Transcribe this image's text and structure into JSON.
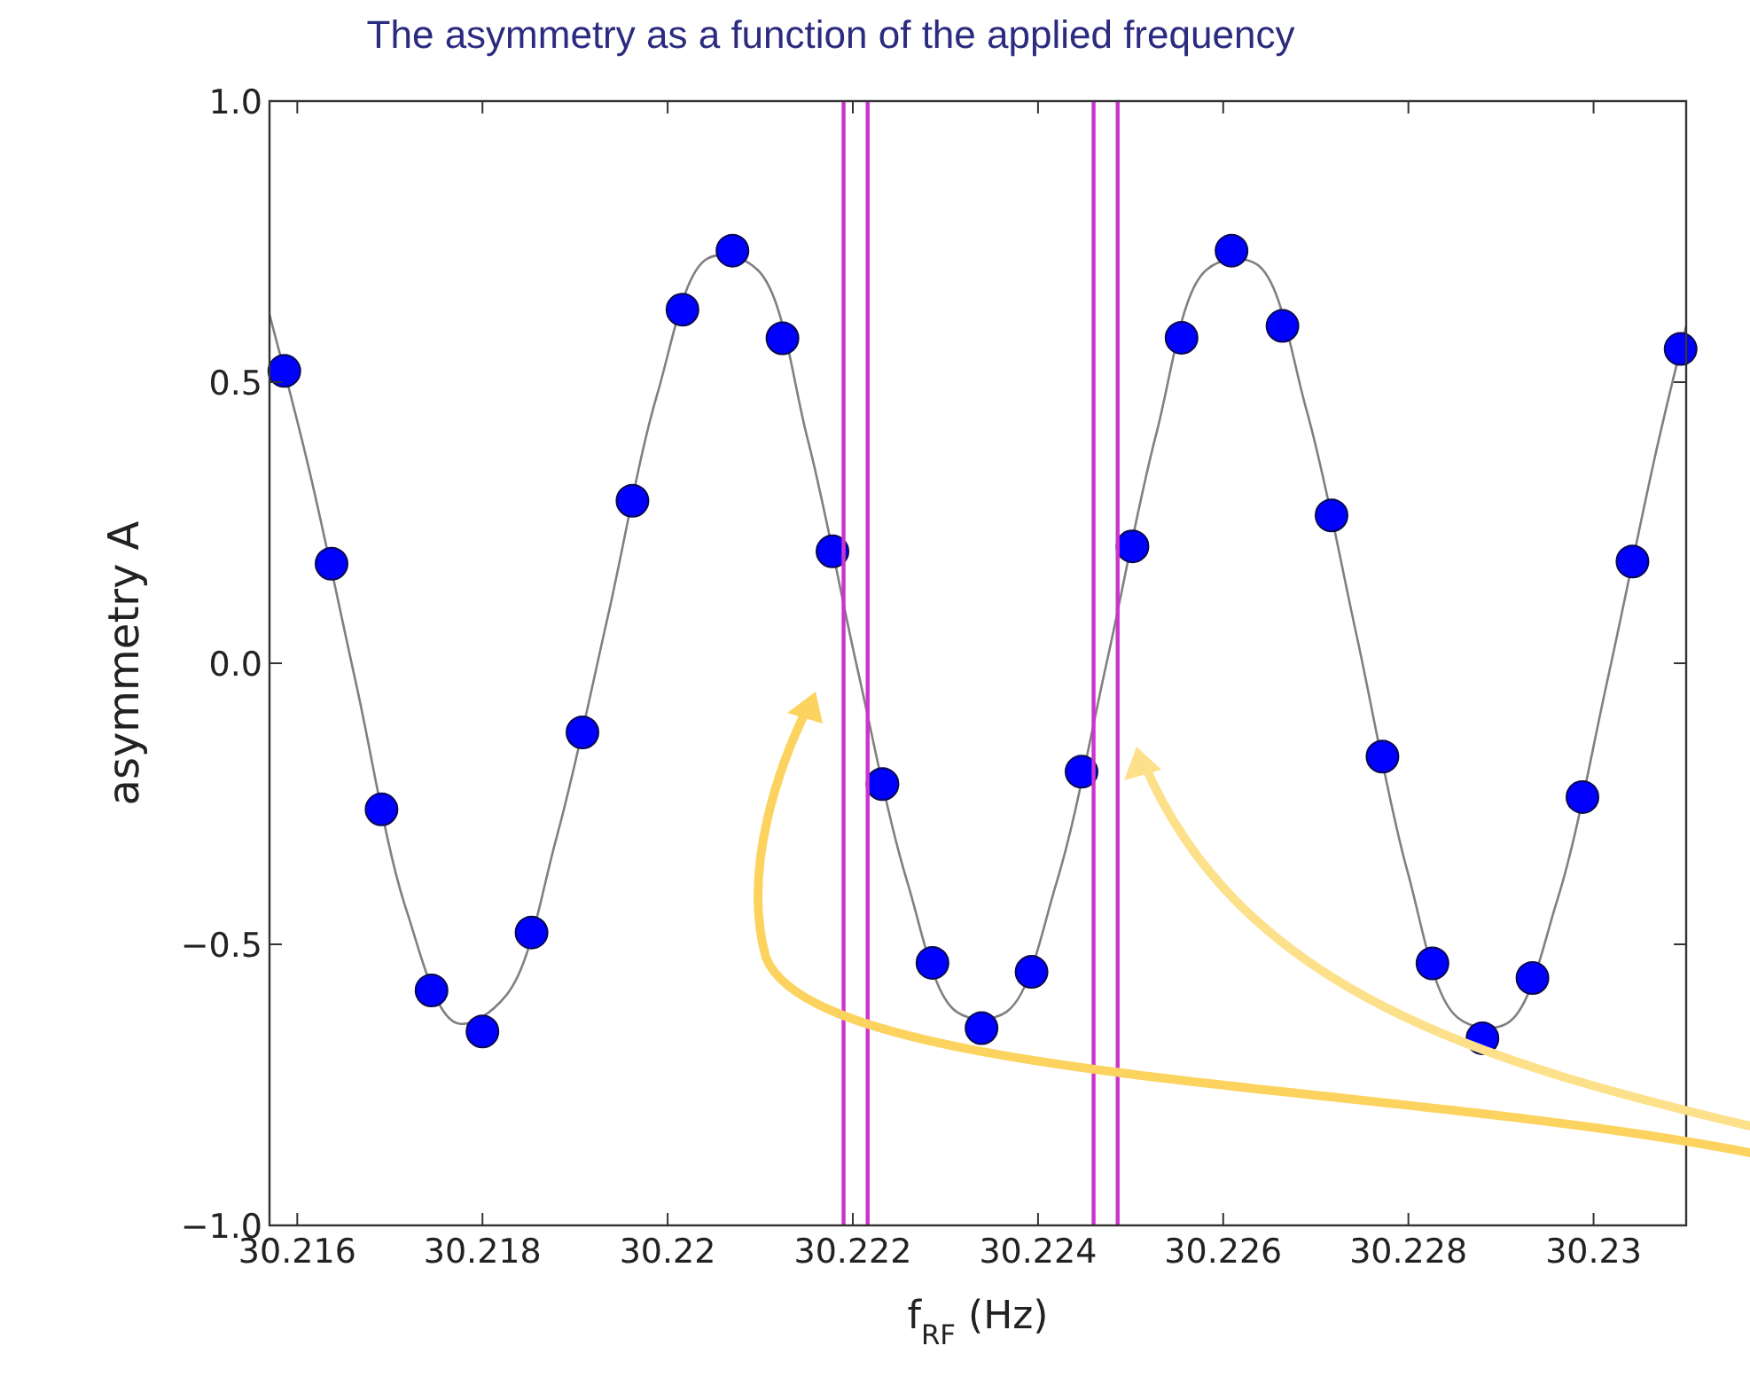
{
  "chart_data": {
    "type": "scatter",
    "title": "The asymmetry as a function of the applied frequency",
    "xlabel": "f$_{RF}$ (Hz)",
    "ylabel": "asymmetry A",
    "xlim": [
      30.2157,
      30.231
    ],
    "ylim": [
      -1,
      1
    ],
    "xticks": [
      30.216,
      30.218,
      30.22,
      30.222,
      30.224,
      30.226,
      30.228,
      30.23
    ],
    "yticks": [
      {
        "value": -1,
        "label": "−1.0"
      },
      {
        "value": -0.5,
        "label": "−0.5"
      },
      {
        "value": 0,
        "label": "0.0"
      },
      {
        "value": 0.5,
        "label": "0.5"
      },
      {
        "value": 1,
        "label": "1.0"
      }
    ],
    "grid": false,
    "marker": "circle",
    "series": [
      {
        "type": "line",
        "color": "#808080",
        "marker": "none",
        "x": [
          30.2157,
          30.21612,
          30.21664,
          30.21718,
          30.21772,
          30.21826,
          30.2188,
          30.21935,
          30.21989,
          30.22043,
          30.22097,
          30.22151,
          30.22205,
          30.22259,
          30.22312,
          30.22366,
          30.2242,
          30.22474,
          30.22528,
          30.22582,
          30.22636,
          30.2269,
          30.22744,
          30.22799,
          30.22853,
          30.22907,
          30.22961,
          30.23015,
          30.23068,
          30.231
        ],
        "values": [
          0.62,
          0.35,
          -0.04,
          -0.44,
          -0.64,
          -0.59,
          -0.31,
          0.08,
          0.48,
          0.72,
          0.7,
          0.4,
          -0.01,
          -0.39,
          -0.62,
          -0.62,
          -0.39,
          0.0,
          0.41,
          0.7,
          0.71,
          0.45,
          0.05,
          -0.37,
          -0.63,
          -0.64,
          -0.42,
          -0.03,
          0.38,
          0.6
        ]
      },
      {
        "color": "#0000ff",
        "x": [
          30.21586,
          30.21637,
          30.21691,
          30.21745,
          30.218,
          30.21853,
          30.21908,
          30.21962,
          30.22016,
          30.2207,
          30.22124,
          30.22178,
          30.22232,
          30.22286,
          30.22339,
          30.22393,
          30.22447,
          30.22502,
          30.22555,
          30.22609,
          30.22664,
          30.22717,
          30.22772,
          30.22826,
          30.2288,
          30.22934,
          30.22988,
          30.23042,
          30.23094
        ],
        "values": [
          0.52,
          0.177,
          -0.26,
          -0.582,
          -0.655,
          -0.479,
          -0.123,
          0.289,
          0.629,
          0.734,
          0.578,
          0.199,
          -0.215,
          -0.533,
          -0.649,
          -0.549,
          -0.193,
          0.208,
          0.579,
          0.734,
          0.6,
          0.263,
          -0.166,
          -0.534,
          -0.667,
          -0.56,
          -0.238,
          0.181,
          0.559
        ]
      }
    ],
    "ref_lines": [
      {
        "axis": "x",
        "value": 30.2219,
        "color": "#cc33cc"
      },
      {
        "axis": "x",
        "value": 30.22216,
        "color": "#cc33cc"
      },
      {
        "axis": "x",
        "value": 30.2246,
        "color": "#cc33cc"
      },
      {
        "axis": "x",
        "value": 30.22486,
        "color": "#cc33cc"
      }
    ]
  }
}
